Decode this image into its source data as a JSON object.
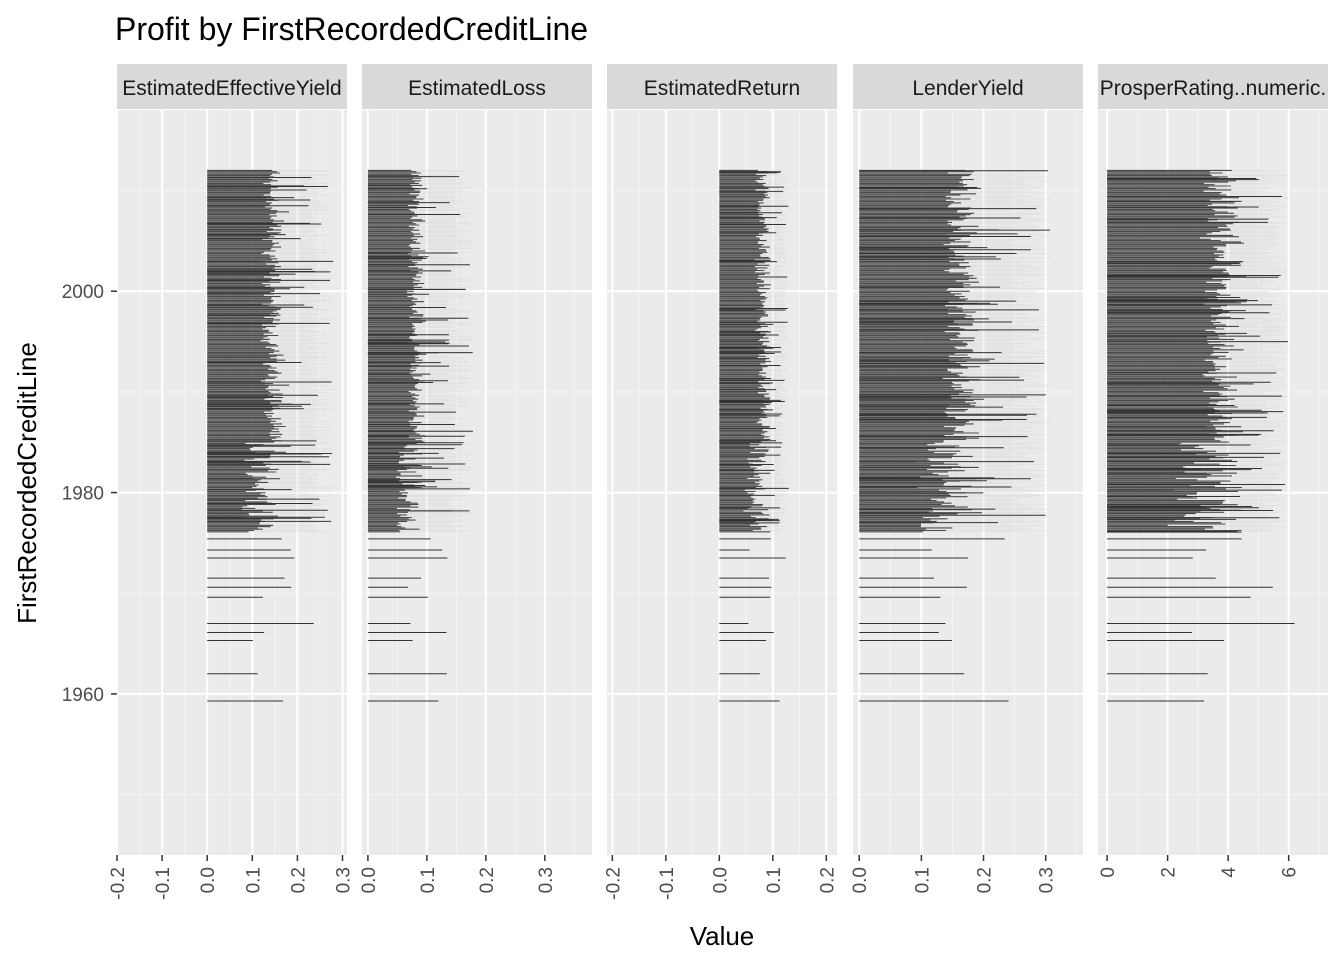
{
  "chart_data": {
    "type": "bar",
    "title": "Profit by FirstRecordedCreditLine",
    "xlabel": "Value",
    "ylabel": "FirstRecordedCreditLine",
    "y_ticks": [
      "1960",
      "1980",
      "2000"
    ],
    "y_tick_values": [
      1960,
      1980,
      2000
    ],
    "ylim": [
      1944,
      2018
    ],
    "data_year_range": [
      1959,
      2012
    ],
    "grid": true,
    "facets": [
      {
        "name": "EstimatedEffectiveYield",
        "xlim": [
          -0.2,
          0.31
        ],
        "x_ticks": [
          "-0.2",
          "-0.1",
          "0.0",
          "0.1",
          "0.2",
          "0.3"
        ],
        "x_tick_values": [
          -0.2,
          -0.1,
          0.0,
          0.1,
          0.2,
          0.3
        ],
        "bar_start": 0,
        "typical_value": 0.16,
        "max_value": 0.29,
        "dense_cap": 0.28
      },
      {
        "name": "EstimatedLoss",
        "xlim": [
          -0.01,
          0.38
        ],
        "x_ticks": [
          "0.0",
          "0.1",
          "0.2",
          "0.3"
        ],
        "x_tick_values": [
          0.0,
          0.1,
          0.2,
          0.3
        ],
        "bar_start": 0,
        "typical_value": 0.09,
        "max_value": 0.18,
        "dense_cap": 0.18
      },
      {
        "name": "EstimatedReturn",
        "xlim": [
          -0.21,
          0.22
        ],
        "x_ticks": [
          "-0.2",
          "-0.1",
          "0.0",
          "0.1",
          "0.2"
        ],
        "x_tick_values": [
          -0.2,
          -0.1,
          0.0,
          0.1,
          0.2
        ],
        "bar_start": 0,
        "typical_value": 0.09,
        "max_value": 0.15,
        "dense_cap": 0.13
      },
      {
        "name": "LenderYield",
        "xlim": [
          -0.01,
          0.36
        ],
        "x_ticks": [
          "0.0",
          "0.1",
          "0.2",
          "0.3"
        ],
        "x_tick_values": [
          0.0,
          0.1,
          0.2,
          0.3
        ],
        "bar_start": 0,
        "typical_value": 0.18,
        "max_value": 0.34,
        "dense_cap": 0.31
      },
      {
        "name": "ProsperRating..numeric.",
        "xlim": [
          -0.3,
          7.3
        ],
        "x_ticks": [
          "0",
          "2",
          "4",
          "6"
        ],
        "x_tick_values": [
          0,
          2,
          4,
          6
        ],
        "bar_start": 0,
        "typical_value": 4.2,
        "max_value": 7.0,
        "dense_cap": 6.0
      }
    ]
  }
}
